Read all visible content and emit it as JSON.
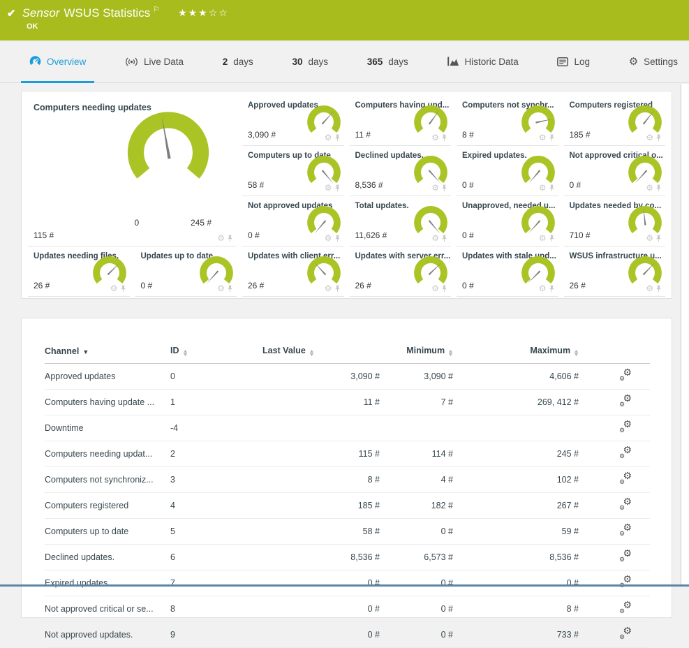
{
  "header": {
    "kind_label": "Sensor",
    "title": "WSUS Statistics",
    "status": "OK",
    "stars_filled": "★★★",
    "stars_empty": "☆☆"
  },
  "tabs": [
    {
      "label": "Overview",
      "active": true
    },
    {
      "label": "Live Data"
    },
    {
      "num": "2",
      "label": "days"
    },
    {
      "num": "30",
      "label": "days"
    },
    {
      "num": "365",
      "label": "days"
    },
    {
      "label": "Historic Data"
    },
    {
      "label": "Log"
    },
    {
      "label": "Settings"
    }
  ],
  "gauges": {
    "main": {
      "title": "Computers needing updates",
      "value": "115 #",
      "min_label": "0",
      "max_label": "245 #",
      "needle_deg": -10
    },
    "small": [
      {
        "title": "Approved updates",
        "value": "3,090 #",
        "needle_deg": 42
      },
      {
        "title": "Computers having upd...",
        "value": "11 #",
        "needle_deg": 36
      },
      {
        "title": "Computers not synchr...",
        "value": "8 #",
        "needle_deg": 78
      },
      {
        "title": "Computers registered",
        "value": "185 #",
        "needle_deg": 38
      },
      {
        "title": "Computers up to date",
        "value": "58 #",
        "needle_deg": 140
      },
      {
        "title": "Declined updates.",
        "value": "8,536 #",
        "needle_deg": 138
      },
      {
        "title": "Expired updates.",
        "value": "0 #",
        "needle_deg": -140
      },
      {
        "title": "Not approved critical o...",
        "value": "0 #",
        "needle_deg": -138
      },
      {
        "title": "Not approved updates",
        "value": "0 #",
        "needle_deg": -140
      },
      {
        "title": "Total updates.",
        "value": "11,626 #",
        "needle_deg": 140
      },
      {
        "title": "Unapproved, needed u...",
        "value": "0 #",
        "needle_deg": -138
      },
      {
        "title": "Updates needed by co...",
        "value": "710 #",
        "needle_deg": -6
      },
      {
        "title": "Updates needing files.",
        "value": "26 #",
        "needle_deg": 45
      },
      {
        "title": "Updates up to date.",
        "value": "0 #",
        "needle_deg": -138
      },
      {
        "title": "Updates with client err...",
        "value": "26 #",
        "needle_deg": -42
      },
      {
        "title": "Updates with server err...",
        "value": "26 #",
        "needle_deg": 46
      },
      {
        "title": "Updates with stale upd...",
        "value": "0 #",
        "needle_deg": -135
      },
      {
        "title": "WSUS infrastructure u...",
        "value": "26 #",
        "needle_deg": 44
      }
    ]
  },
  "table": {
    "headers": {
      "channel": "Channel",
      "id": "ID",
      "last": "Last Value",
      "min": "Minimum",
      "max": "Maximum"
    },
    "rows": [
      {
        "channel": "Approved updates",
        "id": "0",
        "last": "3,090 #",
        "min": "3,090 #",
        "max": "4,606 #"
      },
      {
        "channel": "Computers having update ...",
        "id": "1",
        "last": "11 #",
        "min": "7 #",
        "max": "269, 412 #"
      },
      {
        "channel": "Downtime",
        "id": "-4",
        "last": "",
        "min": "",
        "max": ""
      },
      {
        "channel": "Computers needing updat...",
        "id": "2",
        "last": "115 #",
        "min": "114 #",
        "max": "245 #"
      },
      {
        "channel": "Computers not synchroniz...",
        "id": "3",
        "last": "8 #",
        "min": "4 #",
        "max": "102 #"
      },
      {
        "channel": "Computers registered",
        "id": "4",
        "last": "185 #",
        "min": "182 #",
        "max": "267 #"
      },
      {
        "channel": "Computers up to date",
        "id": "5",
        "last": "58 #",
        "min": "0 #",
        "max": "59 #"
      },
      {
        "channel": "Declined updates.",
        "id": "6",
        "last": "8,536 #",
        "min": "6,573 #",
        "max": "8,536 #"
      },
      {
        "channel": "Expired updates.",
        "id": "7",
        "last": "0 #",
        "min": "0 #",
        "max": "0 #"
      },
      {
        "channel": "Not approved critical or se...",
        "id": "8",
        "last": "0 #",
        "min": "0 #",
        "max": "8 #"
      },
      {
        "channel": "Not approved updates.",
        "id": "9",
        "last": "0 #",
        "min": "0 #",
        "max": "733 #"
      }
    ]
  },
  "colors": {
    "brand_green": "#a8bc1e",
    "gauge_green": "#abc425",
    "accent_blue": "#1b9dd9",
    "needle_gray": "#7d7d7d",
    "bottom_bar_blue": "#5c86a8"
  }
}
